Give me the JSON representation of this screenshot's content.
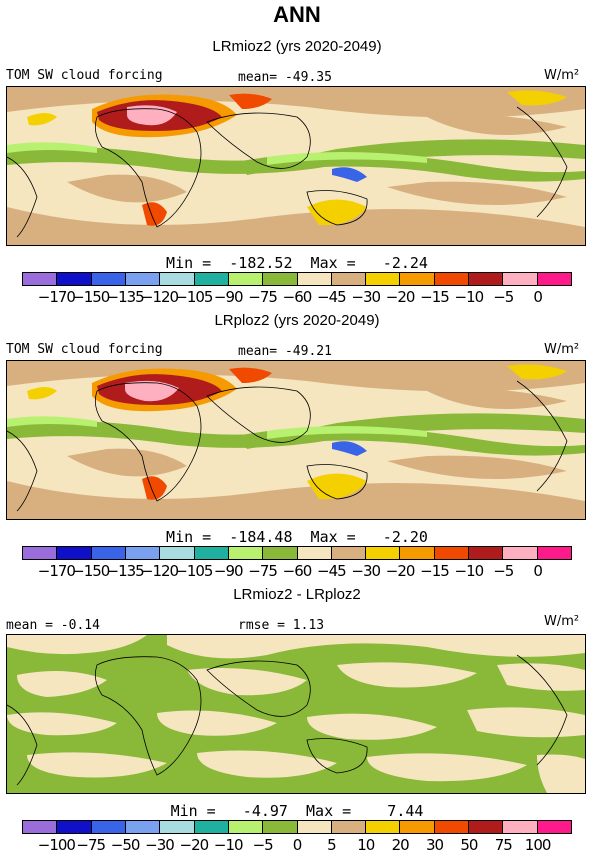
{
  "figure": {
    "title": "ANN"
  },
  "panels": [
    {
      "id": "p1",
      "title": "LRmioz2 (yrs 2020-2049)",
      "variable": "TOM SW cloud forcing",
      "stat_left": "",
      "stat_center": "mean=  -49.35",
      "units": "W/m²",
      "minmax": "Min =  -182.52  Max =   -2.24",
      "colors": [
        "#9a6ddb",
        "#1010c8",
        "#3a64e8",
        "#7aa0f0",
        "#a8dce0",
        "#1fb0a0",
        "#b8f070",
        "#8ab838",
        "#f5e6c0",
        "#d8b080",
        "#f5d000",
        "#f59a00",
        "#f04a00",
        "#b01c1c",
        "#ffb0c0",
        "#ff1a8c"
      ],
      "tick_labels": [
        "-170",
        "-150",
        "-135",
        "-120",
        "-105",
        "-90",
        "-75",
        "-60",
        "-45",
        "-30",
        "-20",
        "-15",
        "-10",
        "-5",
        "0"
      ]
    },
    {
      "id": "p2",
      "title": "LRploz2 (yrs 2020-2049)",
      "variable": "TOM SW cloud forcing",
      "stat_left": "",
      "stat_center": "mean=  -49.21",
      "units": "W/m²",
      "minmax": "Min =  -184.48  Max =   -2.20",
      "colors": [
        "#9a6ddb",
        "#1010c8",
        "#3a64e8",
        "#7aa0f0",
        "#a8dce0",
        "#1fb0a0",
        "#b8f070",
        "#8ab838",
        "#f5e6c0",
        "#d8b080",
        "#f5d000",
        "#f59a00",
        "#f04a00",
        "#b01c1c",
        "#ffb0c0",
        "#ff1a8c"
      ],
      "tick_labels": [
        "-170",
        "-150",
        "-135",
        "-120",
        "-105",
        "-90",
        "-75",
        "-60",
        "-45",
        "-30",
        "-20",
        "-15",
        "-10",
        "-5",
        "0"
      ]
    },
    {
      "id": "p3",
      "title": "LRmioz2 - LRploz2",
      "variable": "",
      "stat_left": "mean =   -0.14",
      "stat_center": "rmse =    1.13",
      "units": "W/m²",
      "minmax": "Min =   -4.97  Max =    7.44",
      "colors": [
        "#9a6ddb",
        "#1010c8",
        "#3a64e8",
        "#7aa0f0",
        "#a8dce0",
        "#1fb0a0",
        "#b8f070",
        "#8ab838",
        "#f5e6c0",
        "#d8b080",
        "#f5d000",
        "#f59a00",
        "#f04a00",
        "#b01c1c",
        "#ffb0c0",
        "#ff1a8c"
      ],
      "tick_labels": [
        "-100",
        "-75",
        "-50",
        "-30",
        "-20",
        "-10",
        "-5",
        "0",
        "5",
        "10",
        "20",
        "30",
        "50",
        "75",
        "100"
      ]
    }
  ]
}
